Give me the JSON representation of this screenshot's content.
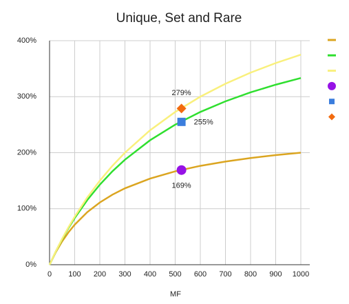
{
  "chart_data": {
    "type": "line",
    "title": "Unique, Set and Rare",
    "x_label": "MF",
    "x": [
      0,
      25,
      50,
      75,
      100,
      150,
      200,
      250,
      300,
      400,
      500,
      600,
      700,
      800,
      900,
      1000
    ],
    "series": [
      {
        "color": "#dba520",
        "values": [
          0,
          22.7,
          41.7,
          57.7,
          71.4,
          93.8,
          111.1,
          125,
          136.4,
          153.8,
          166.7,
          176.5,
          184.2,
          190.5,
          195.7,
          200
        ]
      },
      {
        "color": "#2fdf2f",
        "values": [
          0,
          23.8,
          45.5,
          65.2,
          83.3,
          115.4,
          142.9,
          166.7,
          187.5,
          222.2,
          250,
          272.7,
          291.7,
          307.7,
          321.4,
          333.3
        ]
      },
      {
        "color": "#f9f07c",
        "values": [
          0,
          24,
          46.2,
          66.7,
          85.7,
          120,
          150,
          176.5,
          200,
          240,
          272.7,
          300,
          323.1,
          342.9,
          360,
          375
        ]
      },
      {
        "color": "#9612e6",
        "marker": "circle",
        "x": [
          525
        ],
        "values": [
          169
        ],
        "value_labels": [
          "169%"
        ],
        "label_position": "below"
      },
      {
        "color": "#3b7ddd",
        "marker": "square",
        "x": [
          525
        ],
        "values": [
          255
        ],
        "value_labels": [
          "255%"
        ],
        "label_position": "right"
      },
      {
        "color": "#f26b0f",
        "marker": "diamond",
        "x": [
          525
        ],
        "values": [
          279
        ],
        "value_labels": [
          "279%"
        ],
        "label_position": "above"
      }
    ],
    "xlim": [
      0,
      1000
    ],
    "xticks": [
      0,
      100,
      200,
      300,
      400,
      500,
      600,
      700,
      800,
      900,
      1000
    ],
    "ylim": [
      0,
      400
    ],
    "yticks": [
      {
        "value": 0,
        "label": "0%"
      },
      {
        "value": 100,
        "label": "100%"
      },
      {
        "value": 200,
        "label": "200%"
      },
      {
        "value": 300,
        "label": "300%"
      },
      {
        "value": 400,
        "label": "400%"
      }
    ],
    "grid": true,
    "legend": "right"
  }
}
